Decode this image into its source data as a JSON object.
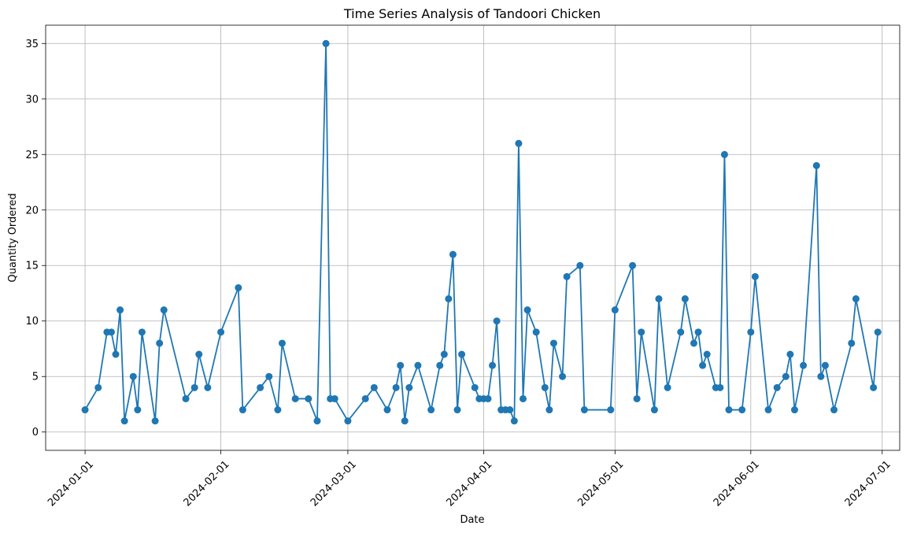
{
  "chart_data": {
    "type": "line",
    "title": "Time Series Analysis of Tandoori Chicken",
    "xlabel": "Date",
    "ylabel": "Quantity Ordered",
    "xlim": [
      "2023-12-23",
      "2024-07-05"
    ],
    "ylim": [
      -1.65,
      36.65
    ],
    "grid": true,
    "color": "#1f77b4",
    "x_ticks": [
      "2024-01-01",
      "2024-02-01",
      "2024-03-01",
      "2024-04-01",
      "2024-05-01",
      "2024-06-01",
      "2024-07-01"
    ],
    "y_ticks": [
      0,
      5,
      10,
      15,
      20,
      25,
      30,
      35
    ],
    "series": [
      {
        "points": [
          [
            "2024-01-01",
            2
          ],
          [
            "2024-01-04",
            4
          ],
          [
            "2024-01-06",
            9
          ],
          [
            "2024-01-07",
            9
          ],
          [
            "2024-01-08",
            7
          ],
          [
            "2024-01-09",
            11
          ],
          [
            "2024-01-10",
            1
          ],
          [
            "2024-01-12",
            5
          ],
          [
            "2024-01-13",
            2
          ],
          [
            "2024-01-14",
            9
          ],
          [
            "2024-01-17",
            1
          ],
          [
            "2024-01-18",
            8
          ],
          [
            "2024-01-19",
            11
          ],
          [
            "2024-01-24",
            3
          ],
          [
            "2024-01-26",
            4
          ],
          [
            "2024-01-27",
            7
          ],
          [
            "2024-01-29",
            4
          ],
          [
            "2024-02-01",
            9
          ],
          [
            "2024-02-05",
            13
          ],
          [
            "2024-02-06",
            2
          ],
          [
            "2024-02-10",
            4
          ],
          [
            "2024-02-12",
            5
          ],
          [
            "2024-02-14",
            2
          ],
          [
            "2024-02-15",
            8
          ],
          [
            "2024-02-18",
            3
          ],
          [
            "2024-02-21",
            3
          ],
          [
            "2024-02-23",
            1
          ],
          [
            "2024-02-25",
            35
          ],
          [
            "2024-02-26",
            3
          ],
          [
            "2024-02-27",
            3
          ],
          [
            "2024-03-01",
            1
          ],
          [
            "2024-03-05",
            3
          ],
          [
            "2024-03-07",
            4
          ],
          [
            "2024-03-10",
            2
          ],
          [
            "2024-03-12",
            4
          ],
          [
            "2024-03-13",
            6
          ],
          [
            "2024-03-14",
            1
          ],
          [
            "2024-03-15",
            4
          ],
          [
            "2024-03-17",
            6
          ],
          [
            "2024-03-20",
            2
          ],
          [
            "2024-03-22",
            6
          ],
          [
            "2024-03-23",
            7
          ],
          [
            "2024-03-24",
            12
          ],
          [
            "2024-03-25",
            16
          ],
          [
            "2024-03-26",
            2
          ],
          [
            "2024-03-27",
            7
          ],
          [
            "2024-03-30",
            4
          ],
          [
            "2024-03-31",
            3
          ],
          [
            "2024-04-01",
            3
          ],
          [
            "2024-04-02",
            3
          ],
          [
            "2024-04-03",
            6
          ],
          [
            "2024-04-04",
            10
          ],
          [
            "2024-04-05",
            2
          ],
          [
            "2024-04-06",
            2
          ],
          [
            "2024-04-07",
            2
          ],
          [
            "2024-04-08",
            1
          ],
          [
            "2024-04-09",
            26
          ],
          [
            "2024-04-10",
            3
          ],
          [
            "2024-04-11",
            11
          ],
          [
            "2024-04-13",
            9
          ],
          [
            "2024-04-15",
            4
          ],
          [
            "2024-04-16",
            2
          ],
          [
            "2024-04-17",
            8
          ],
          [
            "2024-04-19",
            5
          ],
          [
            "2024-04-20",
            14
          ],
          [
            "2024-04-23",
            15
          ],
          [
            "2024-04-24",
            2
          ],
          [
            "2024-04-30",
            2
          ],
          [
            "2024-05-01",
            11
          ],
          [
            "2024-05-05",
            15
          ],
          [
            "2024-05-06",
            3
          ],
          [
            "2024-05-07",
            9
          ],
          [
            "2024-05-10",
            2
          ],
          [
            "2024-05-11",
            12
          ],
          [
            "2024-05-13",
            4
          ],
          [
            "2024-05-16",
            9
          ],
          [
            "2024-05-17",
            12
          ],
          [
            "2024-05-19",
            8
          ],
          [
            "2024-05-20",
            9
          ],
          [
            "2024-05-21",
            6
          ],
          [
            "2024-05-22",
            7
          ],
          [
            "2024-05-24",
            4
          ],
          [
            "2024-05-25",
            4
          ],
          [
            "2024-05-26",
            25
          ],
          [
            "2024-05-27",
            2
          ],
          [
            "2024-05-30",
            2
          ],
          [
            "2024-06-01",
            9
          ],
          [
            "2024-06-02",
            14
          ],
          [
            "2024-06-05",
            2
          ],
          [
            "2024-06-07",
            4
          ],
          [
            "2024-06-09",
            5
          ],
          [
            "2024-06-10",
            7
          ],
          [
            "2024-06-11",
            2
          ],
          [
            "2024-06-13",
            6
          ],
          [
            "2024-06-16",
            24
          ],
          [
            "2024-06-17",
            5
          ],
          [
            "2024-06-18",
            6
          ],
          [
            "2024-06-20",
            2
          ],
          [
            "2024-06-24",
            8
          ],
          [
            "2024-06-25",
            12
          ],
          [
            "2024-06-29",
            4
          ],
          [
            "2024-06-30",
            9
          ]
        ]
      }
    ]
  }
}
